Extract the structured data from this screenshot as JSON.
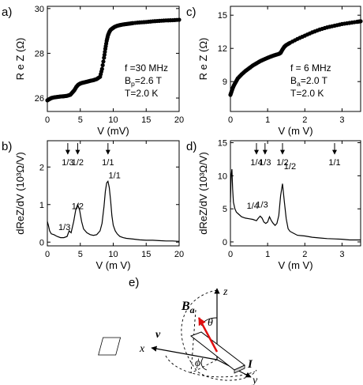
{
  "panels": [
    {
      "label": "a)"
    },
    {
      "label": "b)"
    },
    {
      "label": "c)"
    },
    {
      "label": "d)"
    },
    {
      "label": "e)"
    }
  ],
  "chart_data": [
    {
      "id": "a",
      "type": "scatter",
      "xlabel": "V (mV)",
      "ylabel": "R e Z (Ω)",
      "xlim": [
        0,
        20
      ],
      "ylim": [
        25.4,
        30.1
      ],
      "xticks": [
        "0",
        "5",
        "10",
        "15",
        "20"
      ],
      "yticks": [
        "26",
        "28",
        "30"
      ],
      "ytick_values": [
        26,
        28,
        30
      ],
      "annotations": [
        "f =30 MHz",
        "B_p=2.6 T",
        "T=2.0 K"
      ],
      "x": [
        0,
        0.3,
        0.6,
        1,
        1.5,
        2,
        2.5,
        3,
        3.5,
        3.8,
        4.1,
        4.4,
        4.7,
        5,
        5.3,
        5.6,
        6,
        6.5,
        7,
        7.5,
        8,
        8.3,
        8.6,
        8.8,
        9,
        9.2,
        9.4,
        9.6,
        9.9,
        10.2,
        10.6,
        11,
        11.5,
        12,
        12.5,
        13,
        14,
        15,
        16,
        17,
        18,
        19,
        20
      ],
      "y": [
        25.9,
        25.95,
        26,
        26.03,
        26.05,
        26.07,
        26.08,
        26.1,
        26.15,
        26.25,
        26.35,
        26.5,
        26.6,
        26.65,
        26.68,
        26.7,
        26.73,
        26.77,
        26.8,
        26.85,
        26.95,
        27.3,
        27.8,
        28.2,
        28.55,
        28.8,
        28.95,
        29.05,
        29.12,
        29.18,
        29.23,
        29.26,
        29.29,
        29.31,
        29.33,
        29.35,
        29.38,
        29.4,
        29.43,
        29.45,
        29.47,
        29.48,
        29.5
      ]
    },
    {
      "id": "b",
      "type": "line",
      "xlabel": "V (m V)",
      "ylabel": "dReZ/dV (10³Ω/V)",
      "xlim": [
        0,
        20
      ],
      "ylim": [
        -0.1,
        2.7
      ],
      "xticks": [
        "0",
        "5",
        "10",
        "15",
        "20"
      ],
      "yticks": [
        "0",
        "1",
        "2"
      ],
      "ytick_values": [
        0,
        1,
        2
      ],
      "arrow_labels": [
        {
          "text": "1/3",
          "x": 3.1
        },
        {
          "text": "1/2",
          "x": 4.6
        },
        {
          "text": "1/1",
          "x": 9.2
        }
      ],
      "peak_labels": [
        {
          "text": "1/3",
          "x": 2.6,
          "y": 0.32
        },
        {
          "text": "1/2",
          "x": 4.6,
          "y": 0.88
        },
        {
          "text": "1/1",
          "x": 10.2,
          "y": 1.7
        }
      ],
      "x": [
        0,
        0.15,
        0.35,
        0.6,
        1,
        1.5,
        2,
        2.5,
        3,
        3.3,
        3.6,
        4,
        4.3,
        4.6,
        4.9,
        5.2,
        5.5,
        6,
        6.5,
        7,
        7.5,
        8,
        8.3,
        8.6,
        8.8,
        9,
        9.2,
        9.4,
        9.6,
        9.8,
        10,
        10.3,
        10.6,
        11,
        11.5,
        12,
        13,
        14,
        15,
        16,
        17,
        18,
        19,
        20
      ],
      "y": [
        0.55,
        0.45,
        0.3,
        0.22,
        0.2,
        0.15,
        0.12,
        0.12,
        0.15,
        0.3,
        0.25,
        0.55,
        0.85,
        1.0,
        0.85,
        0.55,
        0.35,
        0.25,
        0.2,
        0.18,
        0.2,
        0.3,
        0.5,
        0.95,
        1.35,
        1.58,
        1.62,
        1.45,
        1.1,
        0.7,
        0.45,
        0.3,
        0.22,
        0.15,
        0.12,
        0.1,
        0.08,
        0.06,
        0.05,
        0.05,
        0.04,
        0.03,
        0.03,
        0.02
      ]
    },
    {
      "id": "c",
      "type": "scatter",
      "xlabel": "V (m V)",
      "ylabel": "R e Z (Ω)",
      "xlim": [
        0,
        3.5
      ],
      "ylim": [
        6.3,
        15.8
      ],
      "xticks": [
        "0",
        "1",
        "2",
        "3"
      ],
      "yticks": [
        "9",
        "12",
        "15"
      ],
      "ytick_values": [
        9,
        12,
        15
      ],
      "annotations": [
        "f = 6 MHz",
        "B_a=2.0 T",
        "T=2.0 K"
      ],
      "x": [
        0,
        0.03,
        0.06,
        0.1,
        0.15,
        0.2,
        0.3,
        0.4,
        0.5,
        0.6,
        0.7,
        0.8,
        0.9,
        1.0,
        1.1,
        1.2,
        1.3,
        1.35,
        1.4,
        1.45,
        1.5,
        1.6,
        1.8,
        2.0,
        2.2,
        2.4,
        2.6,
        2.8,
        3.0,
        3.2,
        3.4,
        3.5
      ],
      "y": [
        7.8,
        8.1,
        8.4,
        8.7,
        9.0,
        9.3,
        9.65,
        9.95,
        10.2,
        10.45,
        10.65,
        10.85,
        11.0,
        11.15,
        11.28,
        11.4,
        11.5,
        11.6,
        11.9,
        12.15,
        12.3,
        12.5,
        12.85,
        13.15,
        13.45,
        13.7,
        13.9,
        14.05,
        14.2,
        14.3,
        14.4,
        14.45
      ]
    },
    {
      "id": "d",
      "type": "line",
      "xlabel": "V (m V)",
      "ylabel": "dReZ/dV (10³Ω/V)",
      "xlim": [
        0,
        3.5
      ],
      "ylim": [
        -0.6,
        15.3
      ],
      "xticks": [
        "0",
        "1",
        "2",
        "3"
      ],
      "yticks": [
        "0",
        "5",
        "10",
        "15"
      ],
      "ytick_values": [
        0,
        5,
        10,
        15
      ],
      "arrow_labels": [
        {
          "text": "1/4",
          "x": 0.7
        },
        {
          "text": "1/3",
          "x": 0.93
        },
        {
          "text": "1/2",
          "x": 1.4
        },
        {
          "text": "1/1",
          "x": 2.8
        }
      ],
      "peak_labels": [
        {
          "text": "1/4",
          "x": 0.6,
          "y": 5.0
        },
        {
          "text": "1/3",
          "x": 0.85,
          "y": 5.2
        },
        {
          "text": "1/2",
          "x": 1.6,
          "y": 11.0
        }
      ],
      "x": [
        0,
        0.02,
        0.04,
        0.06,
        0.08,
        0.12,
        0.16,
        0.2,
        0.3,
        0.4,
        0.5,
        0.6,
        0.7,
        0.75,
        0.8,
        0.85,
        0.9,
        0.95,
        1.0,
        1.05,
        1.1,
        1.15,
        1.2,
        1.25,
        1.3,
        1.35,
        1.4,
        1.45,
        1.5,
        1.55,
        1.6,
        1.7,
        1.8,
        2.0,
        2.2,
        2.4,
        2.6,
        2.8,
        3.0,
        3.2,
        3.4,
        3.5
      ],
      "y": [
        6,
        10,
        11,
        8,
        6,
        5,
        4.5,
        4.3,
        3.8,
        3.6,
        3.5,
        3.4,
        3.2,
        3.6,
        3.9,
        3.6,
        3.0,
        2.8,
        3.0,
        3.8,
        3.2,
        2.8,
        2.5,
        2.8,
        4,
        7,
        8.8,
        6,
        3.5,
        2,
        1.6,
        1.3,
        1.0,
        0.9,
        0.7,
        0.6,
        0.5,
        0.45,
        0.4,
        0.3,
        0.3,
        0.3
      ]
    }
  ],
  "diagram": {
    "labels": {
      "z": "z",
      "x": "x",
      "y": "y",
      "theta": "θ",
      "phi": "ϕ",
      "v": "v",
      "current": "I",
      "field": "B",
      "field_sub": "a"
    },
    "colors": {
      "field_arrow": "#e01010",
      "ink": "#000000"
    }
  }
}
